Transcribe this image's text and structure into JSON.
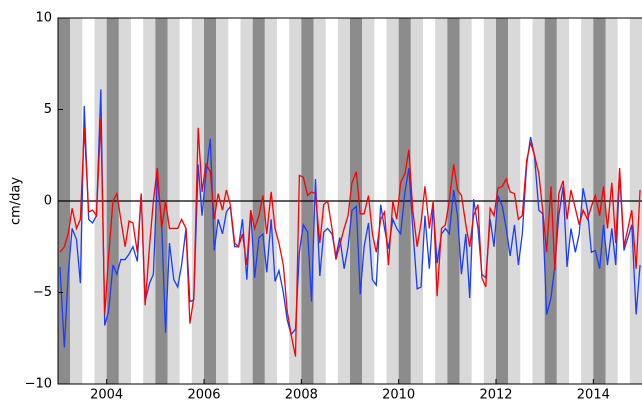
{
  "chart_data": {
    "type": "line",
    "ylabel": "cm/day",
    "xlim": [
      2003,
      2015
    ],
    "ylim": [
      -10,
      10
    ],
    "xticks": [
      2004,
      2006,
      2008,
      2010,
      2012,
      2014
    ],
    "yticks": [
      {
        "value": -10,
        "label": "−10"
      },
      {
        "value": -5,
        "label": "−5"
      },
      0,
      5,
      10
    ],
    "x": [
      2003.04,
      2003.13,
      2003.21,
      2003.29,
      2003.38,
      2003.46,
      2003.54,
      2003.63,
      2003.71,
      2003.79,
      2003.88,
      2003.96,
      2004.04,
      2004.13,
      2004.21,
      2004.29,
      2004.38,
      2004.46,
      2004.54,
      2004.63,
      2004.71,
      2004.79,
      2004.88,
      2004.96,
      2005.04,
      2005.13,
      2005.21,
      2005.29,
      2005.38,
      2005.46,
      2005.54,
      2005.63,
      2005.71,
      2005.79,
      2005.88,
      2005.96,
      2006.04,
      2006.13,
      2006.21,
      2006.29,
      2006.38,
      2006.46,
      2006.54,
      2006.63,
      2006.71,
      2006.79,
      2006.88,
      2006.96,
      2007.04,
      2007.13,
      2007.21,
      2007.29,
      2007.38,
      2007.46,
      2007.54,
      2007.63,
      2007.71,
      2007.79,
      2007.88,
      2007.96,
      2008.04,
      2008.13,
      2008.21,
      2008.29,
      2008.38,
      2008.46,
      2008.54,
      2008.63,
      2008.71,
      2008.79,
      2008.88,
      2008.96,
      2009.04,
      2009.13,
      2009.21,
      2009.29,
      2009.38,
      2009.46,
      2009.54,
      2009.63,
      2009.71,
      2009.79,
      2009.88,
      2009.96,
      2010.04,
      2010.13,
      2010.21,
      2010.29,
      2010.38,
      2010.46,
      2010.54,
      2010.63,
      2010.71,
      2010.79,
      2010.88,
      2010.96,
      2011.04,
      2011.13,
      2011.21,
      2011.29,
      2011.38,
      2011.46,
      2011.54,
      2011.63,
      2011.71,
      2011.79,
      2011.88,
      2011.96,
      2012.04,
      2012.13,
      2012.21,
      2012.29,
      2012.38,
      2012.46,
      2012.54,
      2012.63,
      2012.71,
      2012.79,
      2012.88,
      2012.96,
      2013.04,
      2013.13,
      2013.21,
      2013.29,
      2013.38,
      2013.46,
      2013.54,
      2013.63,
      2013.71,
      2013.79,
      2013.88,
      2013.96,
      2014.04,
      2014.13,
      2014.21,
      2014.29,
      2014.38,
      2014.46,
      2014.54,
      2014.63,
      2014.71,
      2014.79,
      2014.88,
      2014.96
    ],
    "series": [
      {
        "color": "#1a3cff",
        "values": [
          -3.6,
          -8,
          -4,
          -1.5,
          -2.1,
          -4.5,
          5.2,
          -1,
          -1.2,
          -0.8,
          6.1,
          -6.8,
          -6,
          -3.5,
          -4,
          -3.2,
          -3.2,
          -2.9,
          -2.5,
          -3.3,
          0.4,
          -5.5,
          -4.5,
          -4,
          1.4,
          -1.2,
          -7.2,
          -2.3,
          -4.3,
          -4.7,
          -3.5,
          -1.5,
          -5.5,
          -5.4,
          2,
          -0.8,
          1.5,
          3.4,
          -2.7,
          -1,
          -1.8,
          -0.6,
          -0.3,
          -2.5,
          -2.5,
          -1,
          -4.3,
          -0.5,
          -4.2,
          -2,
          -1.8,
          -3.9,
          -1,
          -4.4,
          -3.8,
          -5,
          -6.5,
          -7.3,
          -7,
          -2.8,
          -1.3,
          -1.7,
          -5.5,
          1.2,
          -4.1,
          -1.7,
          -1.5,
          -1.8,
          -3,
          -2,
          -3.7,
          -2.5,
          -0.5,
          -0.3,
          -5.1,
          -2.5,
          -1.2,
          -4.3,
          -4.6,
          -0.2,
          -1.5,
          -2.6,
          -1,
          -1.5,
          -1.8,
          0.5,
          1.8,
          -1.5,
          -4.8,
          -4.7,
          -0.8,
          -3.7,
          -0.3,
          -3.4,
          -1.8,
          -1.5,
          -1.8,
          0.6,
          -0.8,
          -4,
          -1.8,
          -5.3,
          0.1,
          -1.5,
          -4,
          -4.2,
          -1,
          -2.5,
          0.3,
          -0.3,
          -1.5,
          -3,
          -1.3,
          -3.5,
          -1.8,
          2,
          3.5,
          2.5,
          -0.5,
          -0.7,
          -6.2,
          -5.3,
          -3.5,
          -0.8,
          0.8,
          -3.6,
          -1.5,
          -2.8,
          -1.8,
          0.7,
          -0.5,
          -2.8,
          -2.7,
          -3.7,
          -1.3,
          -3.5,
          -1.5,
          -3.5,
          1.5,
          -2.7,
          -2,
          -1.3,
          -6.2,
          -3.5
        ]
      },
      {
        "color": "#ff0000",
        "values": [
          -2.8,
          -2.5,
          -1.8,
          -0.4,
          -1.5,
          -1,
          4,
          -0.6,
          -0.5,
          -0.8,
          4.5,
          -6.2,
          -3,
          0,
          0.4,
          -1,
          -2.5,
          -1.1,
          -1.2,
          -2.8,
          0.4,
          -5.7,
          -2.5,
          0,
          1.8,
          -1.5,
          0,
          -1.5,
          -1.5,
          -1.5,
          -1,
          -1.5,
          -6.7,
          -5.3,
          4,
          0.5,
          2,
          1.6,
          -1,
          0.4,
          -0.5,
          0.6,
          -0.2,
          -2.3,
          -2.5,
          -1.8,
          -3.5,
          -0.5,
          -1.5,
          -0.8,
          0.3,
          -1.8,
          0.5,
          -1.5,
          -2.3,
          -3.5,
          -6,
          -7.3,
          -8.5,
          1.4,
          1.3,
          0.3,
          0.5,
          0.4,
          -2.3,
          -0.2,
          0,
          -1.5,
          -3.2,
          -2.4,
          -1.5,
          -0.8,
          1,
          1.6,
          -0.7,
          -0.7,
          0.3,
          -1.8,
          -2.8,
          -1,
          -0.6,
          -3.5,
          0,
          -1,
          1,
          1.5,
          2.8,
          -0.5,
          -2.5,
          -1.2,
          0.8,
          -1.5,
          0,
          -5.2,
          -1.5,
          -1.3,
          0,
          2,
          0.6,
          0.3,
          -1.3,
          -2.5,
          -0.8,
          -0.2,
          -4.2,
          -4.7,
          -0.4,
          -0.8,
          0.7,
          0.8,
          1.2,
          0.5,
          0.4,
          -1,
          -0.8,
          2.2,
          3.2,
          2.5,
          1.5,
          -0.5,
          -2.8,
          0.8,
          -3.8,
          0.4,
          1.1,
          -1,
          0.6,
          -0.4,
          -1.3,
          -0.5,
          -1,
          -0.3,
          0.3,
          -0.8,
          0.8,
          -1.5,
          1,
          -2.3,
          1.8,
          -2.5,
          -1.5,
          -0.5,
          -3.7,
          0.6
        ]
      }
    ]
  }
}
